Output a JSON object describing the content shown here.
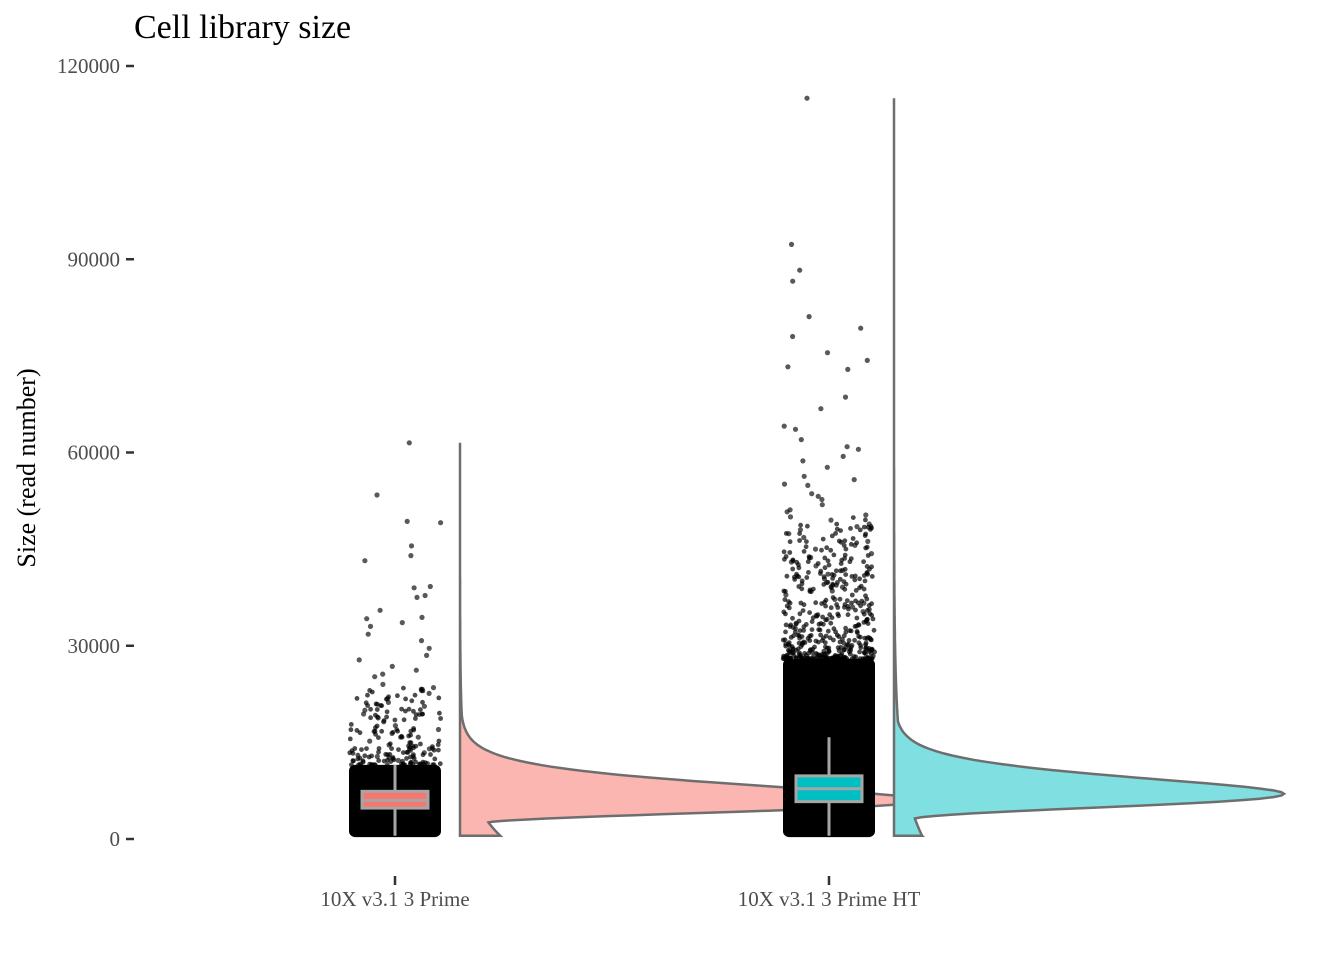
{
  "chart_data": {
    "type": "raincloud",
    "title": "Cell library size",
    "xlabel": "",
    "ylabel": "Size (read number)",
    "ylim": [
      0,
      120000
    ],
    "yticks": [
      0,
      30000,
      60000,
      90000,
      120000
    ],
    "grid": false,
    "legend": "none",
    "categories": [
      "10X v3.1 3 Prime",
      "10X v3.1 3 Prime HT"
    ],
    "groups": [
      {
        "category": "10X v3.1 3 Prime",
        "color": "#F8766D",
        "fill": "#fbb6b1",
        "box": {
          "min": 500,
          "q1": 4800,
          "median": 6000,
          "q3": 7400,
          "max": 11500
        },
        "max_value": 61500,
        "points": [
          61500,
          53400,
          49300,
          49100,
          45500,
          44000,
          43200,
          39200,
          39000,
          37800,
          37500,
          35500,
          34400,
          34200,
          33600,
          33000,
          31800,
          30800,
          29600,
          28500,
          27800,
          26800,
          26200,
          25600,
          25200,
          24000,
          23500,
          22600,
          21800,
          21200,
          20600,
          20000,
          19400,
          18800,
          18200,
          17600,
          17000,
          16400,
          15800,
          15200,
          14600,
          14000,
          13400,
          12800,
          12200
        ]
      },
      {
        "category": "10X v3.1 3 Prime HT",
        "color": "#00BFC4",
        "fill": "#7fdfe1",
        "box": {
          "min": 500,
          "q1": 5800,
          "median": 7800,
          "q3": 9800,
          "max": 15800
        },
        "max_value": 115000,
        "points": [
          115000,
          92300,
          88300,
          86600,
          81100,
          79300,
          78000,
          75500,
          74300,
          73300,
          72900,
          68600,
          66800,
          64100,
          63600,
          62000,
          60900,
          60500,
          59400,
          58700,
          57700,
          56300,
          55800,
          55100,
          54900,
          53600,
          53200,
          52700,
          51900,
          51100,
          50800,
          50300,
          50000,
          49500,
          48900,
          48500,
          48000,
          47400,
          46800,
          46200,
          45600,
          45000,
          44300,
          43700,
          43000,
          42400,
          41700,
          41100,
          40400,
          39800,
          39100,
          38500,
          37900,
          37200,
          36600,
          36000,
          35300,
          34700,
          34100,
          33500
        ]
      }
    ]
  }
}
